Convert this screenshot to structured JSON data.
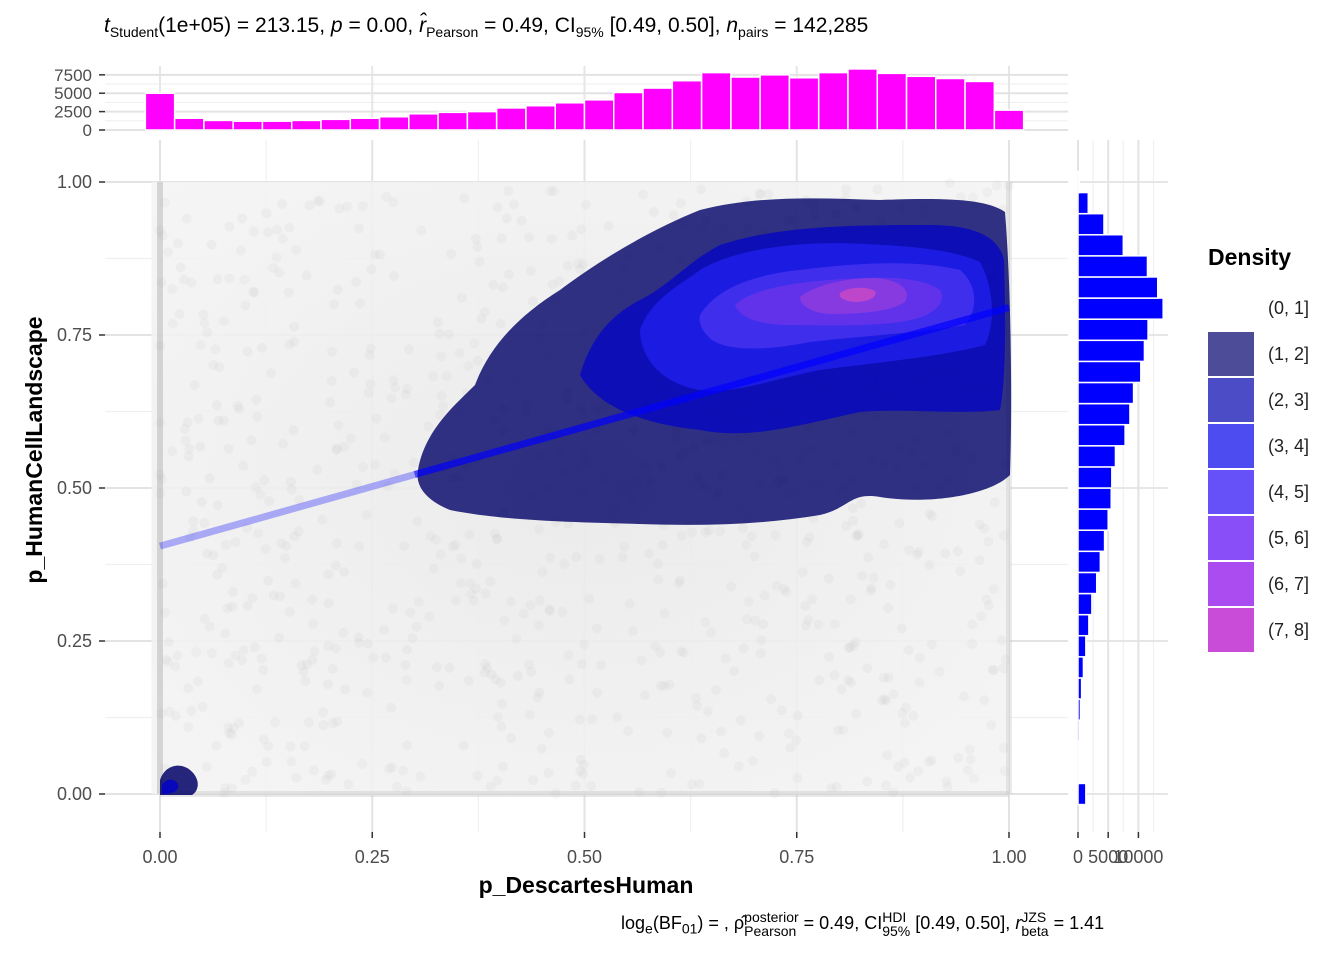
{
  "subtitle": {
    "t_symbol": "t",
    "t_sub": "Student",
    "t_df": "(1e+05) = 213.15, ",
    "p_symbol": "p",
    "p_value": " = 0.00, ",
    "r_symbol": "r̂",
    "r_sub": "Pearson",
    "r_value": " = 0.49, CI",
    "ci_sub": "95%",
    "ci_value": " [0.49, 0.50], ",
    "n_symbol": "n",
    "n_sub": "pairs",
    "n_value": " = 142,285"
  },
  "caption": {
    "bf_text": "log",
    "bf_sub": "e",
    "bf_paren": "(BF",
    "bf_sub2": "01",
    "bf_rest": ") = , ",
    "rho_symbol": "ρ̂",
    "rho_sup": "posterior",
    "rho_sub": "Pearson",
    "rho_value": " = 0.49, CI",
    "hdi_sup": "HDI",
    "hdi_sub": "95%",
    "hdi_value": " [0.49, 0.50], ",
    "r_symbol": "r",
    "r_sup": "JZS",
    "r_sub": "beta",
    "r_value": " = 1.41"
  },
  "legend": {
    "title": "Density",
    "items": [
      {
        "label": "(0, 1]",
        "color": "#ffffff"
      },
      {
        "label": "(1, 2]",
        "color": "#4c4c99"
      },
      {
        "label": "(2, 3]",
        "color": "#4c4cc7"
      },
      {
        "label": "(3, 4]",
        "color": "#4c4cf0"
      },
      {
        "label": "(4, 5]",
        "color": "#6650f8"
      },
      {
        "label": "(5, 6]",
        "color": "#8a4ef8"
      },
      {
        "label": "(6, 7]",
        "color": "#aa4cf0"
      },
      {
        "label": "(7, 8]",
        "color": "#c94cd8"
      }
    ]
  },
  "chart_data": {
    "type": "scatter",
    "xlabel": "p_DescartesHuman",
    "ylabel": "p_HumanCellLandscape",
    "xlim": [
      -0.07,
      1.07
    ],
    "ylim": [
      -0.05,
      1.05
    ],
    "x_ticks": [
      "0.00",
      "0.25",
      "0.50",
      "0.75",
      "1.00"
    ],
    "y_ticks": [
      "0.00",
      "0.25",
      "0.50",
      "0.75",
      "1.00"
    ],
    "grid": true,
    "regression_line": {
      "intercept": 0.405,
      "slope": 0.39,
      "color": "#0000ff"
    },
    "density_contours": [
      {
        "level": "(1, 2]",
        "color": "#000066",
        "opacity": 0.8
      },
      {
        "level": "(2, 3]",
        "color": "#0000cc",
        "opacity": 0.7
      },
      {
        "level": "(3, 4]",
        "color": "#2424ff",
        "opacity": 0.6
      },
      {
        "level": "(4, 5]",
        "color": "#5a3cf5",
        "opacity": 0.6
      },
      {
        "level": "(5, 6]",
        "color": "#7a36ea",
        "opacity": 0.6
      },
      {
        "level": "(6, 7]",
        "color": "#a03fd8",
        "opacity": 0.6
      },
      {
        "level": "(7, 8]",
        "color": "#d44cc0",
        "opacity": 0.7
      }
    ],
    "x_marginal": {
      "color": "#ff00ff",
      "y_ticks": [
        "0",
        "2500",
        "5000",
        "7500"
      ],
      "bin_width": 0.0345,
      "bins": [
        {
          "x": 0.0,
          "count": 5000
        },
        {
          "x": 0.0345,
          "count": 1600
        },
        {
          "x": 0.069,
          "count": 1300
        },
        {
          "x": 0.1034,
          "count": 1200
        },
        {
          "x": 0.1379,
          "count": 1200
        },
        {
          "x": 0.1724,
          "count": 1300
        },
        {
          "x": 0.2069,
          "count": 1450
        },
        {
          "x": 0.2414,
          "count": 1600
        },
        {
          "x": 0.2759,
          "count": 1800
        },
        {
          "x": 0.3103,
          "count": 2200
        },
        {
          "x": 0.3448,
          "count": 2400
        },
        {
          "x": 0.3793,
          "count": 2500
        },
        {
          "x": 0.4138,
          "count": 3000
        },
        {
          "x": 0.4483,
          "count": 3300
        },
        {
          "x": 0.4828,
          "count": 3700
        },
        {
          "x": 0.5172,
          "count": 4100
        },
        {
          "x": 0.5517,
          "count": 5100
        },
        {
          "x": 0.5862,
          "count": 5700
        },
        {
          "x": 0.6207,
          "count": 6700
        },
        {
          "x": 0.6552,
          "count": 7800
        },
        {
          "x": 0.6897,
          "count": 7200
        },
        {
          "x": 0.7241,
          "count": 7500
        },
        {
          "x": 0.7586,
          "count": 7100
        },
        {
          "x": 0.7931,
          "count": 7800
        },
        {
          "x": 0.8276,
          "count": 8300
        },
        {
          "x": 0.8621,
          "count": 7700
        },
        {
          "x": 0.8966,
          "count": 7300
        },
        {
          "x": 0.931,
          "count": 7000
        },
        {
          "x": 0.9655,
          "count": 6600
        },
        {
          "x": 1.0,
          "count": 2700
        }
      ]
    },
    "y_marginal": {
      "color": "#0000ff",
      "x_ticks": [
        "0",
        "5000",
        "10000"
      ],
      "bin_width": 0.0345,
      "bins": [
        {
          "y": 0.0,
          "count": 1300
        },
        {
          "y": 0.0345,
          "count": 150
        },
        {
          "y": 0.069,
          "count": 200
        },
        {
          "y": 0.1034,
          "count": 250
        },
        {
          "y": 0.1379,
          "count": 400
        },
        {
          "y": 0.1724,
          "count": 600
        },
        {
          "y": 0.2069,
          "count": 900
        },
        {
          "y": 0.2414,
          "count": 1300
        },
        {
          "y": 0.2759,
          "count": 1800
        },
        {
          "y": 0.3103,
          "count": 2300
        },
        {
          "y": 0.3448,
          "count": 3100
        },
        {
          "y": 0.3793,
          "count": 3700
        },
        {
          "y": 0.4138,
          "count": 4400
        },
        {
          "y": 0.4483,
          "count": 5000
        },
        {
          "y": 0.4828,
          "count": 5500
        },
        {
          "y": 0.5172,
          "count": 5600
        },
        {
          "y": 0.5517,
          "count": 6200
        },
        {
          "y": 0.5862,
          "count": 7800
        },
        {
          "y": 0.6207,
          "count": 8600
        },
        {
          "y": 0.6552,
          "count": 9200
        },
        {
          "y": 0.6897,
          "count": 10400
        },
        {
          "y": 0.7241,
          "count": 11000
        },
        {
          "y": 0.7586,
          "count": 11600
        },
        {
          "y": 0.7931,
          "count": 14100
        },
        {
          "y": 0.8276,
          "count": 13200
        },
        {
          "y": 0.8621,
          "count": 11500
        },
        {
          "y": 0.8966,
          "count": 7500
        },
        {
          "y": 0.931,
          "count": 4300
        },
        {
          "y": 0.9655,
          "count": 1700
        },
        {
          "y": 1.0,
          "count": 200
        }
      ]
    }
  }
}
